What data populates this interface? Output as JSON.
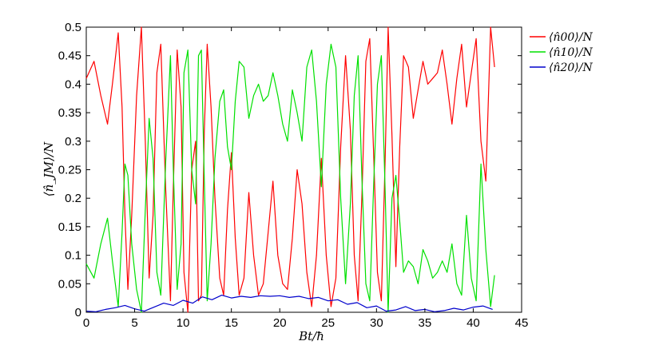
{
  "chart_data": {
    "type": "line",
    "xlabel": "Bt/ħ",
    "ylabel": "⟨n̂_JM⟩/N",
    "xlim": [
      0,
      45
    ],
    "ylim": [
      0,
      0.5
    ],
    "xticks": [
      "0",
      "5",
      "10",
      "15",
      "20",
      "25",
      "30",
      "35",
      "40",
      "45"
    ],
    "yticks": [
      "0",
      "0.05",
      "0.1",
      "0.15",
      "0.2",
      "0.25",
      "0.3",
      "0.35",
      "0.4",
      "0.45",
      "0.5"
    ],
    "grid": false,
    "legend_position": "outside-top-right",
    "series": [
      {
        "name": "⟨n̂00⟩/N",
        "color": "#ff0000",
        "x": [
          0,
          0.8,
          1.5,
          2.2,
          2.7,
          3.3,
          3.7,
          4.0,
          4.3,
          4.7,
          5.2,
          5.7,
          6.1,
          6.5,
          6.9,
          7.3,
          7.7,
          8.2,
          8.7,
          9.0,
          9.4,
          9.8,
          10.1,
          10.5,
          10.9,
          11.3,
          11.6,
          11.9,
          12.2,
          12.5,
          12.9,
          13.3,
          13.8,
          14.2,
          14.6,
          15.0,
          15.4,
          15.8,
          16.3,
          16.8,
          17.3,
          17.8,
          18.3,
          18.8,
          19.3,
          19.8,
          20.3,
          20.8,
          21.3,
          21.8,
          22.3,
          22.8,
          23.3,
          23.8,
          24.3,
          24.8,
          25.3,
          25.8,
          26.3,
          26.8,
          27.3,
          27.7,
          28.1,
          28.5,
          28.9,
          29.3,
          29.7,
          30.1,
          30.5,
          30.9,
          31.2,
          31.6,
          32.0,
          32.4,
          32.8,
          33.3,
          33.8,
          34.3,
          34.8,
          35.3,
          35.8,
          36.3,
          36.8,
          37.3,
          37.8,
          38.3,
          38.8,
          39.3,
          39.8,
          40.3,
          40.8,
          41.3,
          41.8,
          42.2
        ],
        "values": [
          0.41,
          0.44,
          0.38,
          0.33,
          0.4,
          0.49,
          0.36,
          0.17,
          0.04,
          0.17,
          0.38,
          0.5,
          0.3,
          0.06,
          0.17,
          0.42,
          0.47,
          0.22,
          0.02,
          0.22,
          0.46,
          0.36,
          0.07,
          0.0,
          0.25,
          0.3,
          0.02,
          0.03,
          0.32,
          0.47,
          0.36,
          0.2,
          0.06,
          0.03,
          0.18,
          0.28,
          0.13,
          0.03,
          0.06,
          0.21,
          0.1,
          0.03,
          0.05,
          0.14,
          0.23,
          0.1,
          0.05,
          0.04,
          0.13,
          0.25,
          0.19,
          0.07,
          0.01,
          0.1,
          0.27,
          0.1,
          0.01,
          0.06,
          0.29,
          0.45,
          0.32,
          0.1,
          0.02,
          0.21,
          0.44,
          0.48,
          0.28,
          0.07,
          0.02,
          0.27,
          0.5,
          0.31,
          0.08,
          0.29,
          0.45,
          0.43,
          0.34,
          0.39,
          0.44,
          0.4,
          0.41,
          0.42,
          0.46,
          0.4,
          0.33,
          0.41,
          0.47,
          0.36,
          0.42,
          0.48,
          0.3,
          0.23,
          0.5,
          0.43
        ]
      },
      {
        "name": "⟨n̂10⟩/N",
        "color": "#00e000",
        "x": [
          0,
          0.8,
          1.5,
          2.2,
          2.7,
          3.3,
          3.7,
          4.0,
          4.3,
          4.7,
          5.2,
          5.7,
          6.1,
          6.5,
          6.9,
          7.3,
          7.7,
          8.2,
          8.7,
          9.0,
          9.4,
          9.8,
          10.1,
          10.5,
          10.9,
          11.3,
          11.6,
          11.9,
          12.2,
          12.5,
          12.9,
          13.3,
          13.8,
          14.2,
          14.6,
          15.0,
          15.4,
          15.8,
          16.3,
          16.8,
          17.3,
          17.8,
          18.3,
          18.8,
          19.3,
          19.8,
          20.3,
          20.8,
          21.3,
          21.8,
          22.3,
          22.8,
          23.3,
          23.8,
          24.3,
          24.8,
          25.3,
          25.8,
          26.3,
          26.8,
          27.3,
          27.7,
          28.1,
          28.5,
          28.9,
          29.3,
          29.7,
          30.1,
          30.5,
          30.9,
          31.2,
          31.6,
          32.0,
          32.4,
          32.8,
          33.3,
          33.8,
          34.3,
          34.8,
          35.3,
          35.8,
          36.3,
          36.8,
          37.3,
          37.8,
          38.3,
          38.8,
          39.3,
          39.8,
          40.3,
          40.8,
          41.3,
          41.8,
          42.2
        ],
        "values": [
          0.085,
          0.06,
          0.12,
          0.165,
          0.09,
          0.01,
          0.14,
          0.26,
          0.24,
          0.12,
          0.04,
          0.0,
          0.18,
          0.34,
          0.27,
          0.07,
          0.03,
          0.26,
          0.45,
          0.25,
          0.04,
          0.12,
          0.42,
          0.46,
          0.25,
          0.19,
          0.45,
          0.46,
          0.23,
          0.02,
          0.12,
          0.27,
          0.37,
          0.39,
          0.29,
          0.25,
          0.37,
          0.44,
          0.43,
          0.34,
          0.38,
          0.4,
          0.37,
          0.38,
          0.42,
          0.38,
          0.33,
          0.3,
          0.39,
          0.35,
          0.3,
          0.43,
          0.46,
          0.37,
          0.22,
          0.4,
          0.47,
          0.43,
          0.2,
          0.05,
          0.19,
          0.38,
          0.45,
          0.23,
          0.05,
          0.02,
          0.22,
          0.4,
          0.45,
          0.21,
          0.0,
          0.2,
          0.24,
          0.16,
          0.07,
          0.09,
          0.08,
          0.05,
          0.11,
          0.09,
          0.06,
          0.07,
          0.09,
          0.07,
          0.12,
          0.05,
          0.03,
          0.17,
          0.06,
          0.02,
          0.26,
          0.11,
          0.01,
          0.065
        ]
      },
      {
        "name": "⟨n̂20⟩/N",
        "color": "#0000cc",
        "x": [
          0,
          1,
          2,
          3,
          4,
          5,
          6,
          7,
          8,
          9,
          10,
          11,
          12,
          13,
          14,
          15,
          16,
          17,
          18,
          19,
          20,
          21,
          22,
          23,
          24,
          25,
          26,
          27,
          28,
          29,
          30,
          31,
          32,
          33,
          34,
          35,
          36,
          37,
          38,
          39,
          40,
          41,
          42
        ],
        "values": [
          0.002,
          0.001,
          0.005,
          0.008,
          0.012,
          0.006,
          0.002,
          0.009,
          0.016,
          0.012,
          0.021,
          0.016,
          0.027,
          0.022,
          0.03,
          0.025,
          0.028,
          0.026,
          0.029,
          0.028,
          0.029,
          0.026,
          0.028,
          0.024,
          0.026,
          0.02,
          0.022,
          0.014,
          0.017,
          0.008,
          0.011,
          0.002,
          0.004,
          0.01,
          0.003,
          0.005,
          0.001,
          0.003,
          0.007,
          0.004,
          0.009,
          0.011,
          0.005
        ]
      }
    ]
  }
}
